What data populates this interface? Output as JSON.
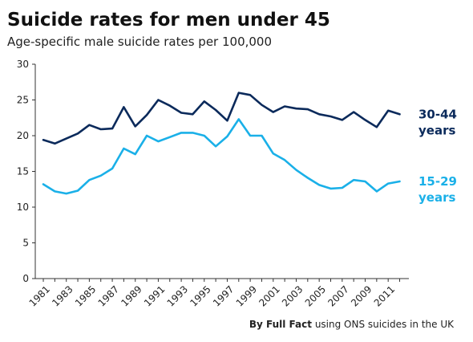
{
  "title": "Suicide rates for men under 45",
  "subtitle": "Age-specific male suicide rates per 100,000",
  "credit": {
    "prefix": "By Full Fact",
    "suffix": " using ONS suicides in the UK"
  },
  "chart_data": {
    "type": "line",
    "title": "Suicide rates for men under 45",
    "subtitle": "Age-specific male suicide rates per 100,000",
    "xlabel": "",
    "ylabel": "",
    "ylim": [
      0,
      30
    ],
    "yticks": [
      0,
      5,
      10,
      15,
      20,
      25,
      30
    ],
    "xticks": [
      "1981",
      "1983",
      "1985",
      "1987",
      "1989",
      "1991",
      "1993",
      "1995",
      "1997",
      "1999",
      "2001",
      "2003",
      "2005",
      "2007",
      "2009",
      "2011"
    ],
    "grid": false,
    "legend": "inline labels at right end of lines",
    "x": [
      1981,
      1982,
      1983,
      1984,
      1985,
      1986,
      1987,
      1988,
      1989,
      1990,
      1991,
      1992,
      1993,
      1994,
      1995,
      1996,
      1997,
      1998,
      1999,
      2000,
      2001,
      2002,
      2003,
      2004,
      2005,
      2006,
      2007,
      2008,
      2009,
      2010,
      2011,
      2012
    ],
    "series": [
      {
        "name": "30-44 years",
        "label_lines": [
          "30-44",
          "years"
        ],
        "color": "#0b2a5b",
        "values": [
          19.4,
          18.9,
          19.6,
          20.3,
          21.5,
          20.9,
          21.0,
          24.0,
          21.3,
          22.9,
          25.0,
          24.2,
          23.2,
          23.0,
          24.8,
          23.6,
          22.1,
          26.0,
          25.7,
          24.3,
          23.3,
          24.1,
          23.8,
          23.7,
          23.0,
          22.7,
          22.2,
          23.3,
          22.2,
          21.2,
          23.5,
          23.0
        ]
      },
      {
        "name": "15-29 years",
        "label_lines": [
          "15-29",
          "years"
        ],
        "color": "#1ab0e8",
        "values": [
          13.2,
          12.2,
          11.9,
          12.3,
          13.8,
          14.4,
          15.4,
          18.2,
          17.4,
          20.0,
          19.2,
          19.8,
          20.4,
          20.4,
          20.0,
          18.5,
          19.9,
          22.3,
          20.0,
          20.0,
          17.5,
          16.6,
          15.2,
          14.1,
          13.1,
          12.6,
          12.7,
          13.8,
          13.6,
          12.2,
          13.3,
          13.6
        ]
      }
    ]
  }
}
